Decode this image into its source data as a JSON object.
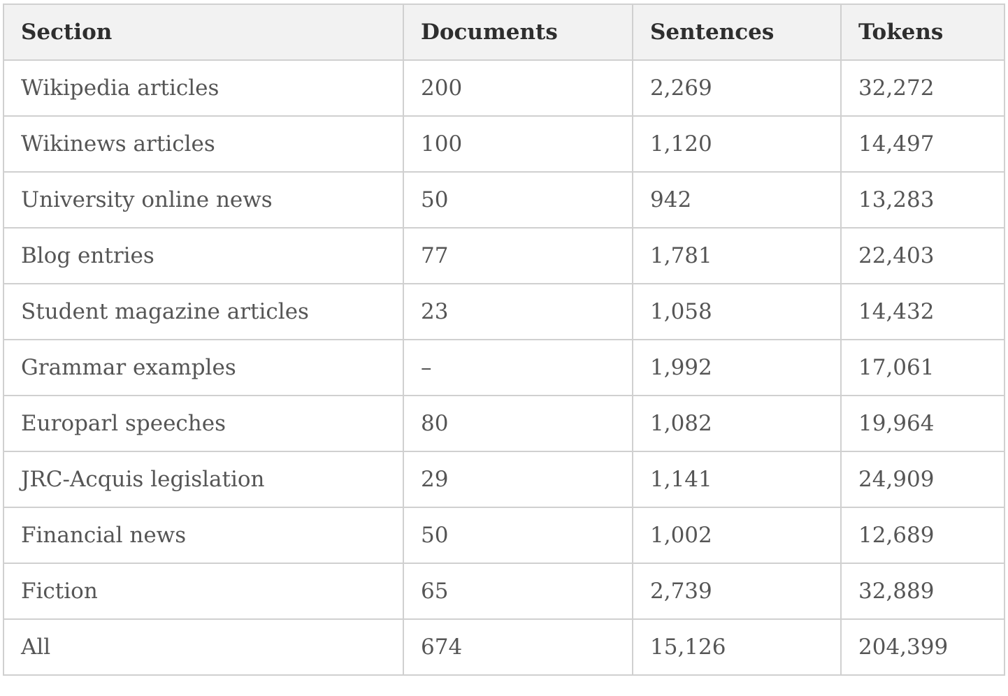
{
  "table": {
    "columns": [
      "Section",
      "Documents",
      "Sentences",
      "Tokens"
    ],
    "rows": [
      [
        "Wikipedia articles",
        "200",
        "2,269",
        "32,272"
      ],
      [
        "Wikinews articles",
        "100",
        "1,120",
        "14,497"
      ],
      [
        "University online news",
        "50",
        "942",
        "13,283"
      ],
      [
        "Blog entries",
        "77",
        "1,781",
        "22,403"
      ],
      [
        "Student magazine articles",
        "23",
        "1,058",
        "14,432"
      ],
      [
        "Grammar examples",
        "–",
        "1,992",
        "17,061"
      ],
      [
        "Europarl speeches",
        "80",
        "1,082",
        "19,964"
      ],
      [
        "JRC-Acquis legislation",
        "29",
        "1,141",
        "24,909"
      ],
      [
        "Financial news",
        "50",
        "1,002",
        "12,689"
      ],
      [
        "Fiction",
        "65",
        "2,739",
        "32,889"
      ],
      [
        "All",
        "674",
        "15,126",
        "204,399"
      ]
    ]
  },
  "colors": {
    "header_background": "#f2f2f2",
    "border": "#d0d0d0",
    "header_text": "#2e2e2e",
    "body_text": "#555555"
  }
}
